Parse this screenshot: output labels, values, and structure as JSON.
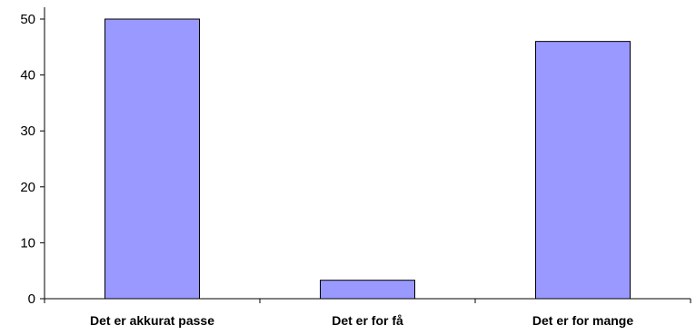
{
  "chart_data": {
    "type": "bar",
    "title": "",
    "xlabel": "",
    "ylabel": "",
    "categories": [
      "Det er akkurat passe",
      "Det er for få",
      "Det er for mange"
    ],
    "series": [
      {
        "values": [
          50,
          3.3,
          46
        ]
      }
    ],
    "ylim": [
      0,
      50
    ],
    "yticks": [
      0,
      10,
      20,
      30,
      40,
      50
    ],
    "grid": false,
    "legend": "none",
    "colors": {
      "bar_fill": "#9999FF",
      "bar_stroke": "#000000",
      "axis": "#000000"
    }
  }
}
